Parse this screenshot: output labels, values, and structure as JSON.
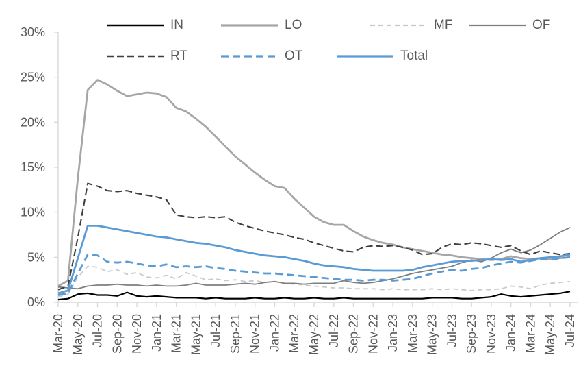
{
  "chart_data": {
    "type": "line",
    "title": "",
    "xlabel": "",
    "ylabel": "",
    "ylim": [
      0,
      30
    ],
    "ytick_step": 5,
    "y_tick_labels": [
      "0%",
      "5%",
      "10%",
      "15%",
      "20%",
      "25%",
      "30%"
    ],
    "x_tick_every": 2,
    "grid": false,
    "legend_position": "top",
    "axis_color": "#D9D9D9",
    "label_color": "#595959",
    "x": [
      "Mar-20",
      "Apr-20",
      "May-20",
      "Jun-20",
      "Jul-20",
      "Aug-20",
      "Sep-20",
      "Oct-20",
      "Nov-20",
      "Dec-20",
      "Jan-21",
      "Feb-21",
      "Mar-21",
      "Apr-21",
      "May-21",
      "Jun-21",
      "Jul-21",
      "Aug-21",
      "Sep-21",
      "Oct-21",
      "Nov-21",
      "Dec-21",
      "Jan-22",
      "Feb-22",
      "Mar-22",
      "Apr-22",
      "May-22",
      "Jun-22",
      "Jul-22",
      "Aug-22",
      "Sep-22",
      "Oct-22",
      "Nov-22",
      "Dec-22",
      "Jan-23",
      "Feb-23",
      "Mar-23",
      "Apr-23",
      "May-23",
      "Jun-23",
      "Jul-23",
      "Aug-23",
      "Sep-23",
      "Oct-23",
      "Nov-23",
      "Dec-23",
      "Jan-24",
      "Feb-24",
      "Mar-24",
      "Apr-24",
      "May-24",
      "Jun-24",
      "Jul-24"
    ],
    "series": [
      {
        "name": "IN",
        "color": "#000000",
        "style": "solid",
        "dash": "",
        "width": 2.2,
        "values": [
          0.3,
          0.4,
          0.9,
          1.0,
          0.8,
          0.8,
          0.7,
          1.1,
          0.7,
          0.6,
          0.7,
          0.6,
          0.5,
          0.5,
          0.5,
          0.4,
          0.5,
          0.4,
          0.4,
          0.4,
          0.5,
          0.4,
          0.4,
          0.5,
          0.4,
          0.4,
          0.5,
          0.4,
          0.4,
          0.5,
          0.4,
          0.4,
          0.4,
          0.4,
          0.4,
          0.4,
          0.4,
          0.4,
          0.5,
          0.5,
          0.5,
          0.4,
          0.4,
          0.5,
          0.6,
          0.9,
          0.7,
          0.6,
          0.7,
          0.8,
          0.9,
          1.0,
          1.2
        ]
      },
      {
        "name": "LO",
        "color": "#A6A6A6",
        "style": "solid",
        "dash": "",
        "width": 2.8,
        "values": [
          1.8,
          2.4,
          13.8,
          23.6,
          24.7,
          24.2,
          23.5,
          22.9,
          23.1,
          23.3,
          23.2,
          22.8,
          21.6,
          21.2,
          20.4,
          19.5,
          18.4,
          17.3,
          16.2,
          15.3,
          14.4,
          13.6,
          12.9,
          12.7,
          11.5,
          10.5,
          9.5,
          8.9,
          8.6,
          8.6,
          7.9,
          7.3,
          6.9,
          6.6,
          6.4,
          6.1,
          5.9,
          5.7,
          5.5,
          5.3,
          5.2,
          5.0,
          4.9,
          4.8,
          4.7,
          4.8,
          5.1,
          4.9,
          4.8,
          4.9,
          4.8,
          4.9,
          5.0
        ]
      },
      {
        "name": "MF",
        "color": "#C9C9C9",
        "style": "dashed",
        "dash": "7 5",
        "width": 1.8,
        "values": [
          0.6,
          0.9,
          2.8,
          4.0,
          3.9,
          3.4,
          3.6,
          3.1,
          3.3,
          2.8,
          2.7,
          3.0,
          2.6,
          3.3,
          2.9,
          2.5,
          2.6,
          2.4,
          2.5,
          2.3,
          2.4,
          2.2,
          2.3,
          2.1,
          2.0,
          1.9,
          1.8,
          1.7,
          1.6,
          1.6,
          1.5,
          1.5,
          1.5,
          1.4,
          1.5,
          1.4,
          1.4,
          1.4,
          1.5,
          1.4,
          1.5,
          1.4,
          1.3,
          1.4,
          1.4,
          1.5,
          1.8,
          1.7,
          1.5,
          1.9,
          2.1,
          2.2,
          2.3
        ]
      },
      {
        "name": "OF",
        "color": "#7F7F7F",
        "style": "solid",
        "dash": "",
        "width": 1.8,
        "values": [
          1.7,
          1.6,
          1.5,
          1.8,
          1.9,
          1.9,
          2.0,
          1.9,
          1.9,
          1.8,
          1.9,
          1.8,
          1.8,
          1.9,
          2.1,
          1.9,
          1.9,
          1.9,
          2.0,
          2.1,
          2.0,
          2.2,
          2.3,
          2.1,
          2.1,
          2.0,
          2.1,
          2.1,
          2.1,
          2.4,
          2.2,
          2.1,
          2.2,
          2.4,
          2.6,
          2.9,
          3.2,
          3.4,
          3.6,
          3.8,
          4.0,
          4.4,
          4.7,
          4.5,
          4.9,
          5.5,
          5.9,
          5.5,
          5.8,
          6.4,
          7.1,
          7.8,
          8.3
        ]
      },
      {
        "name": "RT",
        "color": "#3F3F3F",
        "style": "dashed",
        "dash": "10 5",
        "width": 2.1,
        "values": [
          1.4,
          1.8,
          7.2,
          13.2,
          12.9,
          12.4,
          12.3,
          12.4,
          12.1,
          11.9,
          11.7,
          11.4,
          9.7,
          9.5,
          9.4,
          9.5,
          9.4,
          9.5,
          8.9,
          8.5,
          8.2,
          7.9,
          7.7,
          7.5,
          7.2,
          7.0,
          6.6,
          6.3,
          6.0,
          5.7,
          5.6,
          6.1,
          6.3,
          6.2,
          6.3,
          6.1,
          5.8,
          5.3,
          5.4,
          6.1,
          6.5,
          6.4,
          6.6,
          6.5,
          6.3,
          6.1,
          6.3,
          5.7,
          5.3,
          5.7,
          5.5,
          5.3,
          5.4
        ]
      },
      {
        "name": "OT",
        "color": "#5B9BD5",
        "style": "dashed",
        "dash": "11 6",
        "width": 2.8,
        "values": [
          0.8,
          1.0,
          3.2,
          5.3,
          5.2,
          4.5,
          4.4,
          4.5,
          4.3,
          4.1,
          4.0,
          4.2,
          3.9,
          4.0,
          3.9,
          4.0,
          3.8,
          3.7,
          3.5,
          3.4,
          3.3,
          3.2,
          3.2,
          3.1,
          3.0,
          2.9,
          2.8,
          2.7,
          2.6,
          2.5,
          2.5,
          2.4,
          2.5,
          2.5,
          2.4,
          2.5,
          2.6,
          2.9,
          3.2,
          3.4,
          3.6,
          3.5,
          3.7,
          3.8,
          4.1,
          4.3,
          4.5,
          4.4,
          4.6,
          4.8,
          4.7,
          4.9,
          5.0
        ]
      },
      {
        "name": "Total",
        "color": "#5B9BD5",
        "style": "solid",
        "dash": "",
        "width": 2.8,
        "values": [
          1.0,
          1.3,
          4.9,
          8.5,
          8.5,
          8.3,
          8.1,
          7.9,
          7.7,
          7.5,
          7.3,
          7.2,
          7.0,
          6.8,
          6.6,
          6.5,
          6.3,
          6.1,
          5.8,
          5.6,
          5.4,
          5.2,
          5.1,
          5.0,
          4.8,
          4.6,
          4.3,
          4.1,
          4.0,
          3.9,
          3.7,
          3.6,
          3.5,
          3.5,
          3.5,
          3.5,
          3.6,
          3.9,
          4.1,
          4.3,
          4.5,
          4.6,
          4.6,
          4.7,
          4.8,
          4.7,
          4.8,
          4.5,
          4.7,
          4.9,
          5.0,
          5.1,
          5.3
        ]
      }
    ]
  }
}
